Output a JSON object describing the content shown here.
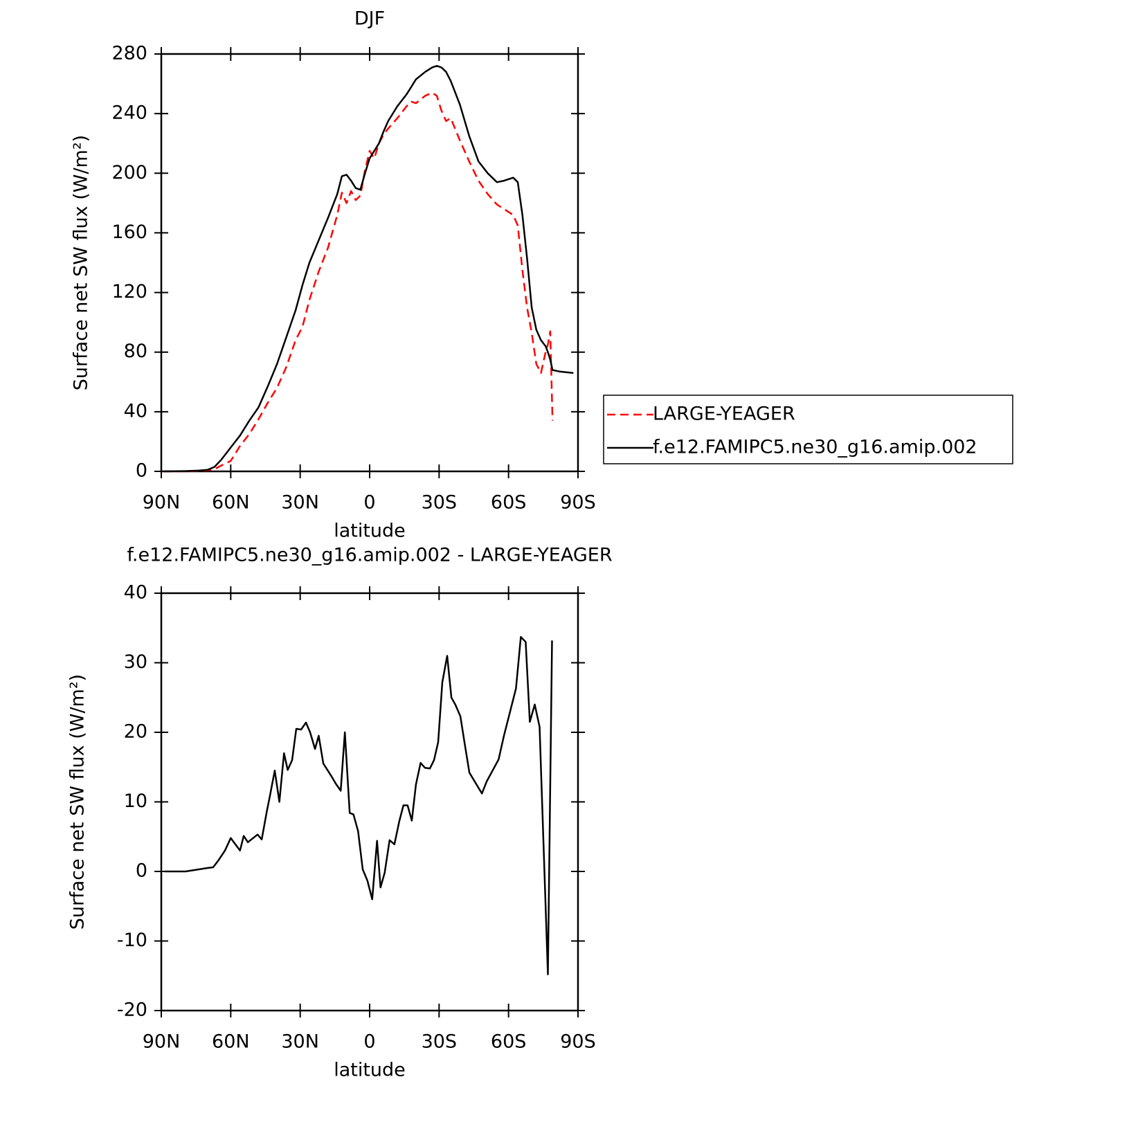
{
  "chart_data": [
    {
      "type": "line",
      "title": "DJF",
      "xlabel": "latitude",
      "ylabel": "Surface net SW flux (W/m²)",
      "xlim": [
        90,
        -90
      ],
      "ylim": [
        0,
        280
      ],
      "xticks": [
        {
          "value": 90,
          "label": "90N"
        },
        {
          "value": 60,
          "label": "60N"
        },
        {
          "value": 30,
          "label": "30N"
        },
        0,
        {
          "value": -30,
          "label": "30S"
        },
        {
          "value": -60,
          "label": "60S"
        },
        {
          "value": -90,
          "label": "90S"
        }
      ],
      "yticks": [
        0,
        40,
        80,
        120,
        160,
        200,
        240,
        280
      ],
      "legend": "right",
      "x": [
        89,
        80,
        74,
        70,
        67,
        64,
        60,
        56,
        52,
        48,
        44,
        40,
        36,
        32,
        29,
        26,
        22,
        18,
        14,
        12,
        10,
        8,
        6,
        4,
        2,
        0,
        -2,
        -4,
        -6,
        -8,
        -12,
        -16,
        -18,
        -20,
        -24,
        -27,
        -29,
        -31,
        -33,
        -35,
        -39,
        -43,
        -47,
        -51,
        -55,
        -58,
        -62,
        -64,
        -66,
        -68,
        -70,
        -72,
        -74,
        -76,
        -77,
        -78,
        -79,
        -82,
        -88
      ],
      "series": [
        {
          "name": "LARGE-YEAGER",
          "color": "#ff0000",
          "dashed": true,
          "values": [
            0,
            0,
            0.3,
            0.7,
            1.5,
            4,
            7,
            17,
            25,
            35,
            46,
            56,
            70,
            88,
            97,
            115,
            134,
            150,
            172,
            187,
            180,
            188,
            182,
            185,
            202,
            215,
            210,
            220,
            226,
            230,
            237,
            245,
            248,
            247,
            252,
            254,
            252,
            242,
            235,
            237,
            222,
            208,
            195,
            186,
            179,
            176,
            172,
            165,
            135,
            110,
            93,
            72,
            66,
            80,
            85,
            94,
            34,
            null,
            null
          ]
        },
        {
          "name": "f.e12.FAMIPC5.ne30_g16.amip.002",
          "color": "#000000",
          "dashed": false,
          "values": [
            0,
            0.2,
            0.5,
            1,
            3,
            8,
            16,
            24,
            34,
            43,
            57,
            72,
            90,
            108,
            125,
            140,
            155,
            170,
            186,
            198,
            199,
            195,
            190,
            189,
            200,
            210,
            215,
            220,
            228,
            235,
            245,
            253,
            258,
            263,
            268,
            271,
            272,
            271,
            268,
            262,
            246,
            225,
            208,
            200,
            194,
            195,
            197,
            194,
            172,
            143,
            110,
            95,
            88,
            84,
            80,
            75,
            68,
            67,
            66
          ]
        }
      ]
    },
    {
      "type": "line",
      "title": "f.e12.FAMIPC5.ne30_g16.amip.002 - LARGE-YEAGER",
      "xlabel": "latitude",
      "ylabel": "Surface net SW flux (W/m²)",
      "xlim": [
        90,
        -90
      ],
      "ylim": [
        -20,
        40
      ],
      "xticks": [
        {
          "value": 90,
          "label": "90N"
        },
        {
          "value": 60,
          "label": "60N"
        },
        {
          "value": 30,
          "label": "30N"
        },
        0,
        {
          "value": -30,
          "label": "30S"
        },
        {
          "value": -60,
          "label": "60S"
        },
        {
          "value": -90,
          "label": "90S"
        }
      ],
      "yticks": [
        -20,
        -10,
        0,
        10,
        20,
        30,
        40
      ],
      "x": [
        88.5,
        79.5,
        70,
        67.6,
        65.5,
        62.5,
        60,
        56,
        54.4,
        52.6,
        48.4,
        46.6,
        44.5,
        43,
        41,
        39,
        37,
        35.4,
        33.5,
        31.7,
        29.6,
        27.5,
        25.7,
        23.6,
        22,
        20,
        16.7,
        14.6,
        12.5,
        10.7,
        8.6,
        7,
        5,
        3,
        1,
        -1.1,
        -3.2,
        -4.7,
        -6.5,
        -8.6,
        -10.7,
        -12.8,
        -14.6,
        -16.4,
        -18.2,
        -20,
        -22,
        -23.9,
        -26,
        -27.8,
        -29.6,
        -31.4,
        -33.5,
        -35.3,
        -37,
        -39.2,
        -41,
        -43.1,
        -48.5,
        -50.5,
        -55.7,
        -58,
        -63.2,
        -65.3,
        -67.4,
        -69.2,
        -71.3,
        -73.4,
        -77,
        -78.8
      ],
      "series": [
        {
          "name": null,
          "color": "#000000",
          "dashed": false,
          "values": [
            0,
            0,
            0.5,
            0.6,
            1.5,
            3,
            4.8,
            3,
            5.1,
            4.2,
            5.3,
            4.6,
            8.5,
            11,
            14.5,
            10,
            17,
            14.6,
            16,
            20.5,
            20.4,
            21.4,
            20,
            17.6,
            19.5,
            15.5,
            13.8,
            12.6,
            11.6,
            20,
            8.4,
            8.2,
            5.8,
            0.3,
            -1.3,
            -4,
            4.4,
            -2.3,
            -0.2,
            4.5,
            3.9,
            7.2,
            9.5,
            9.5,
            7.3,
            12.5,
            15.6,
            14.9,
            14.8,
            16,
            18.6,
            27.2,
            31,
            25,
            24,
            22.3,
            18.5,
            14.2,
            11.2,
            12.9,
            16.1,
            19.5,
            26.3,
            33.7,
            33,
            21.5,
            24,
            20.8,
            -14.8,
            33.2
          ]
        }
      ]
    }
  ]
}
